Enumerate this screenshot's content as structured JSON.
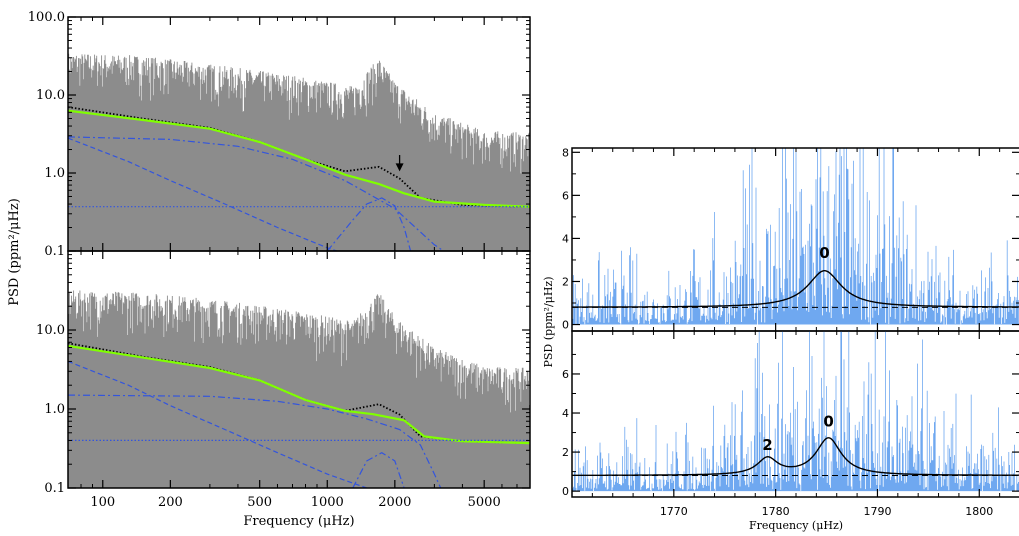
{
  "figure": {
    "left_ylabel": "PSD (ppm²/μHz)",
    "left_xlabel": "Frequency (μHz)",
    "right_ylabel": "PSD (ppm²/μHz)",
    "right_xlabel": "Frequency (μHz)"
  },
  "colors": {
    "psd_gray": "#8c8c8c",
    "fit_green": "#80ff00",
    "component_blue": "#3355dd",
    "right_psd_blue": "#6fa8f0",
    "model_black": "#000000"
  },
  "chart_data": [
    {
      "id": "left-top",
      "type": "line",
      "xscale": "log",
      "yscale": "log",
      "xlim": [
        70,
        8000
      ],
      "ylim": [
        0.1,
        100
      ],
      "xticks": [
        100,
        200,
        500,
        1000,
        2000,
        5000
      ],
      "yticks": [
        0.1,
        1.0,
        10.0,
        100.0
      ],
      "ytick_labels": [
        "0.1",
        "1.0",
        "10.0",
        "100.0"
      ],
      "annotation": {
        "type": "arrow",
        "x": 2100,
        "y_from": 1.7,
        "y_to": 1.05
      },
      "psd_envelope": [
        [
          70,
          35
        ],
        [
          150,
          32
        ],
        [
          300,
          25
        ],
        [
          700,
          18
        ],
        [
          1300,
          13
        ],
        [
          1700,
          30
        ],
        [
          2000,
          15
        ],
        [
          3000,
          6
        ],
        [
          5000,
          3.5
        ],
        [
          8000,
          3.3
        ]
      ],
      "series": [
        {
          "role": "full-model",
          "style": "dotted-black",
          "points": [
            [
              70,
              7
            ],
            [
              150,
              5
            ],
            [
              300,
              3.8
            ],
            [
              500,
              2.5
            ],
            [
              800,
              1.5
            ],
            [
              1200,
              1.05
            ],
            [
              1700,
              1.2
            ],
            [
              2100,
              0.85
            ],
            [
              2600,
              0.48
            ],
            [
              4000,
              0.39
            ],
            [
              8000,
              0.37
            ]
          ]
        },
        {
          "role": "background-fit",
          "style": "green",
          "points": [
            [
              70,
              6.3
            ],
            [
              150,
              4.8
            ],
            [
              300,
              3.7
            ],
            [
              500,
              2.5
            ],
            [
              800,
              1.5
            ],
            [
              1200,
              0.95
            ],
            [
              1700,
              0.72
            ],
            [
              2200,
              0.55
            ],
            [
              3000,
              0.43
            ],
            [
              5000,
              0.39
            ],
            [
              8000,
              0.37
            ]
          ]
        },
        {
          "role": "component-1",
          "style": "dash-dot-blue",
          "points": [
            [
              70,
              2.9
            ],
            [
              200,
              2.7
            ],
            [
              400,
              2.2
            ],
            [
              700,
              1.5
            ],
            [
              1200,
              0.8
            ],
            [
              2000,
              0.35
            ],
            [
              3000,
              0.12
            ],
            [
              3300,
              0.1
            ]
          ]
        },
        {
          "role": "component-2",
          "style": "dashed-blue",
          "points": [
            [
              70,
              2.8
            ],
            [
              130,
              1.4
            ],
            [
              200,
              0.8
            ],
            [
              350,
              0.4
            ],
            [
              600,
              0.2
            ],
            [
              1000,
              0.11
            ],
            [
              1100,
              0.1
            ]
          ]
        },
        {
          "role": "white-noise",
          "style": "dotted-blue",
          "points": [
            [
              70,
              0.37
            ],
            [
              8000,
              0.37
            ]
          ]
        },
        {
          "role": "gaussian-envelope",
          "style": "dash-dot-blue",
          "points": [
            [
              1000,
              0.1
            ],
            [
              1300,
              0.25
            ],
            [
              1500,
              0.4
            ],
            [
              1750,
              0.48
            ],
            [
              2000,
              0.38
            ],
            [
              2200,
              0.2
            ],
            [
              2350,
              0.1
            ]
          ]
        }
      ]
    },
    {
      "id": "left-bottom",
      "type": "line",
      "xscale": "log",
      "yscale": "log",
      "xlim": [
        70,
        8000
      ],
      "ylim": [
        0.1,
        100
      ],
      "xticks": [
        100,
        200,
        500,
        1000,
        2000,
        5000
      ],
      "xtick_labels": [
        "100",
        "200",
        "500",
        "1000",
        "2000",
        "5000"
      ],
      "yticks": [
        0.1,
        1.0,
        10.0
      ],
      "ytick_labels": [
        "0.1",
        "1.0",
        "10.0"
      ],
      "psd_envelope": [
        [
          70,
          32
        ],
        [
          150,
          30
        ],
        [
          300,
          25
        ],
        [
          700,
          18
        ],
        [
          1300,
          13
        ],
        [
          1700,
          30
        ],
        [
          2000,
          15
        ],
        [
          3000,
          6
        ],
        [
          5000,
          3.5
        ],
        [
          8000,
          3.3
        ]
      ],
      "series": [
        {
          "role": "full-model",
          "style": "dotted-black",
          "points": [
            [
              70,
              6.8
            ],
            [
              150,
              4.6
            ],
            [
              300,
              3.4
            ],
            [
              500,
              2.3
            ],
            [
              800,
              1.3
            ],
            [
              1200,
              0.95
            ],
            [
              1700,
              1.15
            ],
            [
              2100,
              0.85
            ],
            [
              2600,
              0.45
            ],
            [
              4000,
              0.39
            ],
            [
              8000,
              0.37
            ]
          ]
        },
        {
          "role": "background-fit",
          "style": "green",
          "points": [
            [
              70,
              6.3
            ],
            [
              150,
              4.5
            ],
            [
              300,
              3.3
            ],
            [
              500,
              2.3
            ],
            [
              800,
              1.3
            ],
            [
              1200,
              0.95
            ],
            [
              1600,
              0.86
            ],
            [
              2200,
              0.72
            ],
            [
              2700,
              0.45
            ],
            [
              4000,
              0.39
            ],
            [
              8000,
              0.37
            ]
          ]
        },
        {
          "role": "component-1",
          "style": "dash-dot-blue",
          "points": [
            [
              70,
              1.5
            ],
            [
              300,
              1.45
            ],
            [
              600,
              1.25
            ],
            [
              1000,
              1.0
            ],
            [
              1500,
              0.75
            ],
            [
              2100,
              0.55
            ],
            [
              2600,
              0.35
            ],
            [
              3000,
              0.15
            ],
            [
              3200,
              0.1
            ]
          ]
        },
        {
          "role": "component-2",
          "style": "dashed-blue",
          "points": [
            [
              70,
              4.0
            ],
            [
              130,
              2.0
            ],
            [
              200,
              1.1
            ],
            [
              350,
              0.55
            ],
            [
              600,
              0.28
            ],
            [
              1000,
              0.15
            ],
            [
              1500,
              0.1
            ]
          ]
        },
        {
          "role": "white-noise",
          "style": "dotted-blue",
          "points": [
            [
              70,
              0.4
            ],
            [
              8000,
              0.4
            ]
          ]
        },
        {
          "role": "gaussian-envelope",
          "style": "dash-dot-blue",
          "points": [
            [
              1300,
              0.1
            ],
            [
              1500,
              0.22
            ],
            [
              1750,
              0.28
            ],
            [
              2000,
              0.22
            ],
            [
              2200,
              0.1
            ]
          ]
        }
      ]
    },
    {
      "id": "right-top",
      "type": "line",
      "xlim": [
        1760,
        1804
      ],
      "ylim": [
        -0.3,
        8.2
      ],
      "yticks": [
        0,
        2,
        4,
        6,
        8
      ],
      "ytick_labels": [
        "0",
        "2",
        "4",
        "6",
        "8"
      ],
      "baseline": 0.8,
      "peaks": [
        {
          "x": 1784.8,
          "height": 1.7,
          "width": 2.0,
          "label": "0"
        }
      ],
      "labels": [
        {
          "text": "0",
          "x": 1784.8,
          "y": 3.1
        }
      ]
    },
    {
      "id": "right-bottom",
      "type": "line",
      "xlim": [
        1760,
        1804
      ],
      "ylim": [
        -0.3,
        8.2
      ],
      "xticks": [
        1770,
        1780,
        1790,
        1800
      ],
      "xtick_labels": [
        "1770",
        "1780",
        "1790",
        "1800"
      ],
      "yticks": [
        0,
        2,
        4,
        6
      ],
      "ytick_labels": [
        "0",
        "2",
        "4",
        "6"
      ],
      "baseline": 0.8,
      "peaks": [
        {
          "x": 1779.2,
          "height": 0.85,
          "width": 1.2,
          "label": "2"
        },
        {
          "x": 1785.2,
          "height": 1.9,
          "width": 1.5,
          "label": "0"
        }
      ],
      "labels": [
        {
          "text": "2",
          "x": 1779.2,
          "y": 2.1
        },
        {
          "text": "0",
          "x": 1785.2,
          "y": 3.3
        }
      ]
    }
  ]
}
